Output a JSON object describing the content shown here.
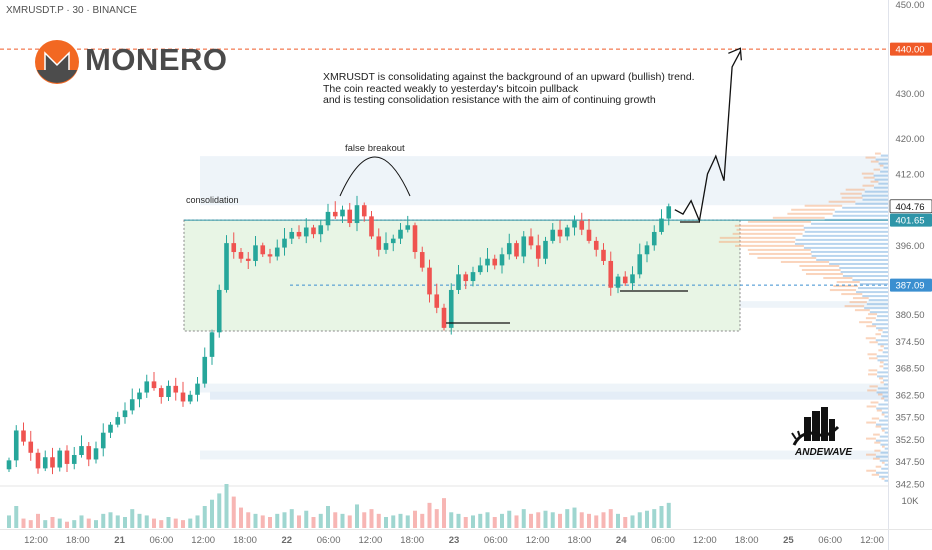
{
  "header": {
    "symbol": "XMRUSDT.P · 30 · BINANCE"
  },
  "logo": {
    "text": "MONERO",
    "icon": "monero-logo-icon",
    "color": "#f26822"
  },
  "annotations": {
    "note_lines": [
      "XMRUSDT is consolidating against the background of an upward (bullish) trend.",
      "The coin reacted weakly to yesterday's bitcoin pullback",
      "and is testing consolidation resistance with the aim of continuing growth"
    ],
    "false_breakout": "false breakout",
    "consolidation": "consolidation"
  },
  "watermark": {
    "text": "ANDEWAVE",
    "icon": "bull-city-icon"
  },
  "colors": {
    "bull": "#26a69a",
    "bear": "#ef5350",
    "target": "#f05a28",
    "resistance": "#2e95a8",
    "support": "#3b8fd0",
    "zone_fill": "#e8f5e5",
    "zone_border": "#8a8a8a"
  },
  "chart_data": {
    "type": "candlestick",
    "title": "XMRUSDT.P · 30 · BINANCE",
    "y_axis": {
      "side": "right",
      "range": [
        342.5,
        451
      ],
      "ticks": [
        450.0,
        440.0,
        430.0,
        420.0,
        412.0,
        404.76,
        401.65,
        396.0,
        387.09,
        380.5,
        374.5,
        368.5,
        362.5,
        357.5,
        352.5,
        347.5,
        342.5
      ]
    },
    "x_axis": {
      "ticks": [
        "12:00",
        "18:00",
        "21",
        "06:00",
        "12:00",
        "18:00",
        "22",
        "06:00",
        "12:00",
        "18:00",
        "23",
        "06:00",
        "12:00",
        "18:00",
        "24",
        "06:00",
        "12:00",
        "18:00",
        "25",
        "06:00",
        "12:00"
      ]
    },
    "price_labels": [
      {
        "value": "440.00",
        "kind": "target"
      },
      {
        "value": "404.76",
        "kind": "last"
      },
      {
        "value": "401.65",
        "kind": "resistance"
      },
      {
        "value": "387.09",
        "kind": "support"
      }
    ],
    "levels": {
      "target": 440.0,
      "resistance": 401.65,
      "support": 387.09
    },
    "consolidation_zone": {
      "top": 401.65,
      "bottom": 376.8,
      "label": "consolidation"
    },
    "forecast_path": [
      404.0,
      403.0,
      406.0,
      401.5,
      412.0,
      416.0,
      410.5,
      436.0,
      439.5
    ],
    "closes": [
      347.8,
      354.5,
      352.0,
      349.5,
      346.0,
      348.5,
      346.2,
      350.0,
      347.0,
      349.0,
      351.0,
      348.0,
      350.5,
      354.0,
      355.8,
      357.5,
      359.0,
      361.5,
      363.0,
      365.5,
      364.0,
      362.0,
      364.5,
      363.0,
      361.0,
      362.5,
      365.0,
      371.0,
      376.5,
      386.0,
      396.5,
      394.5,
      393.0,
      392.5,
      396.0,
      394.0,
      393.5,
      395.5,
      397.5,
      399.0,
      398.0,
      400.0,
      398.5,
      400.5,
      403.5,
      402.5,
      404.0,
      401.0,
      405.0,
      402.5,
      398.0,
      395.0,
      396.5,
      397.5,
      399.5,
      400.5,
      394.5,
      391.0,
      385.0,
      382.0,
      377.5,
      386.0,
      389.5,
      388.0,
      390.0,
      391.5,
      393.0,
      391.5,
      394.0,
      396.5,
      393.5,
      398.0,
      396.0,
      393.0,
      397.0,
      399.5,
      398.0,
      400.0,
      401.5,
      399.5,
      397.0,
      395.0,
      392.5,
      386.5,
      389.0,
      387.5,
      389.5,
      394.0,
      396.0,
      399.0,
      402.0,
      404.76
    ],
    "volume_label": "10K",
    "volume": [
      8,
      14,
      6,
      5,
      9,
      5,
      7,
      6,
      4,
      5,
      8,
      6,
      5,
      9,
      10,
      8,
      7,
      12,
      9,
      8,
      6,
      5,
      7,
      6,
      5,
      6,
      8,
      14,
      18,
      22,
      28,
      20,
      13,
      10,
      9,
      8,
      7,
      9,
      10,
      12,
      8,
      11,
      7,
      9,
      14,
      10,
      9,
      8,
      15,
      10,
      12,
      9,
      7,
      8,
      9,
      8,
      11,
      9,
      16,
      12,
      19,
      10,
      9,
      7,
      8,
      9,
      10,
      7,
      9,
      11,
      8,
      12,
      9,
      10,
      11,
      10,
      9,
      12,
      13,
      10,
      9,
      8,
      10,
      12,
      9,
      7,
      8,
      10,
      11,
      12,
      14,
      16
    ]
  }
}
